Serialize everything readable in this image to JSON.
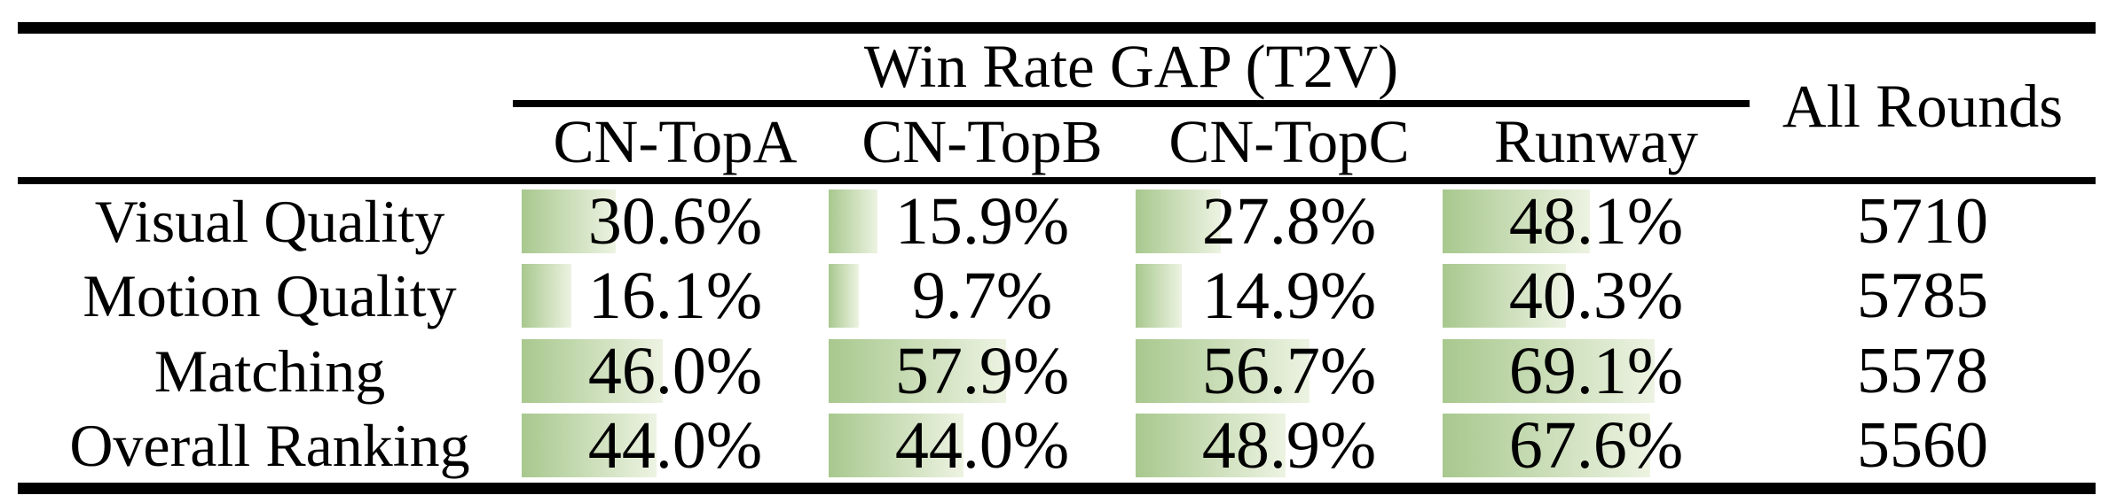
{
  "table": {
    "group_header": "Win Rate GAP (T2V)",
    "all_rounds_header": "All Rounds",
    "model_columns": [
      "CN-TopA",
      "CN-TopB",
      "CN-TopC",
      "Runway"
    ],
    "rows": [
      {
        "label": "Visual Quality",
        "values": [
          "30.6%",
          "15.9%",
          "27.8%",
          "48.1%"
        ],
        "all_rounds": "5710"
      },
      {
        "label": "Motion Quality",
        "values": [
          "16.1%",
          "9.7%",
          "14.9%",
          "40.3%"
        ],
        "all_rounds": "5785"
      },
      {
        "label": "Matching",
        "values": [
          "46.0%",
          "57.9%",
          "56.7%",
          "69.1%"
        ],
        "all_rounds": "5578"
      },
      {
        "label": "Overall Ranking",
        "values": [
          "44.0%",
          "44.0%",
          "48.9%",
          "67.6%"
        ],
        "all_rounds": "5560"
      }
    ],
    "colors": {
      "bar_gradient_start": "#a8c88e",
      "bar_gradient_end": "#edf3e2",
      "rule": "#000000",
      "text": "#000000",
      "background": "#ffffff"
    }
  },
  "chart_data": {
    "type": "table",
    "title": "Win Rate GAP (T2V)",
    "categories": [
      "Visual Quality",
      "Motion Quality",
      "Matching",
      "Overall Ranking"
    ],
    "series": [
      {
        "name": "CN-TopA",
        "values": [
          30.6,
          16.1,
          46.0,
          44.0
        ]
      },
      {
        "name": "CN-TopB",
        "values": [
          15.9,
          9.7,
          57.9,
          44.0
        ]
      },
      {
        "name": "CN-TopC",
        "values": [
          27.8,
          14.9,
          56.7,
          48.9
        ]
      },
      {
        "name": "Runway",
        "values": [
          48.1,
          40.3,
          69.1,
          67.6
        ]
      }
    ],
    "all_rounds": [
      5710,
      5785,
      5578,
      5560
    ],
    "unit": "%",
    "layout": "in-cell horizontal gradient bars, bar width proportional to percentage of column width"
  }
}
